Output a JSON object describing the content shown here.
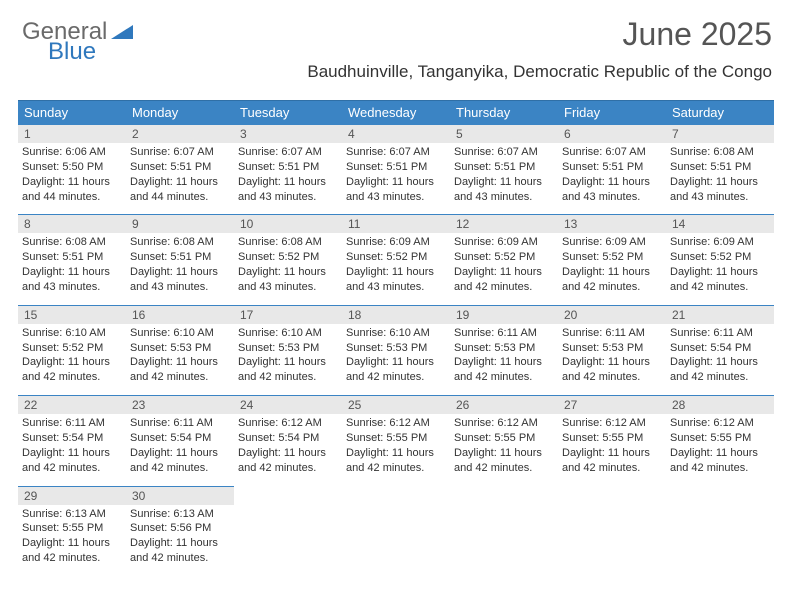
{
  "brand": {
    "general": "General",
    "blue": "Blue"
  },
  "title": "June 2025",
  "location": "Baudhuinville, Tanganyika, Democratic Republic of the Congo",
  "colors": {
    "header_bg": "#3b84c4",
    "header_border": "#2f6fa6",
    "daynum_bg": "#e8e8e8",
    "cell_border": "#3b84c4",
    "text": "#333333",
    "title_text": "#555555",
    "logo_gray": "#6a6a6a",
    "logo_blue": "#2f78bd",
    "page_bg": "#ffffff"
  },
  "typography": {
    "title_fontsize": 32,
    "location_fontsize": 17,
    "dayhead_fontsize": 13,
    "daynum_fontsize": 12,
    "cell_fontsize": 11
  },
  "day_names": [
    "Sunday",
    "Monday",
    "Tuesday",
    "Wednesday",
    "Thursday",
    "Friday",
    "Saturday"
  ],
  "labels": {
    "sunrise": "Sunrise:",
    "sunset": "Sunset:",
    "daylight": "Daylight:"
  },
  "weeks": [
    [
      {
        "n": "1",
        "sr": "6:06 AM",
        "ss": "5:50 PM",
        "dl": "11 hours and 44 minutes."
      },
      {
        "n": "2",
        "sr": "6:07 AM",
        "ss": "5:51 PM",
        "dl": "11 hours and 44 minutes."
      },
      {
        "n": "3",
        "sr": "6:07 AM",
        "ss": "5:51 PM",
        "dl": "11 hours and 43 minutes."
      },
      {
        "n": "4",
        "sr": "6:07 AM",
        "ss": "5:51 PM",
        "dl": "11 hours and 43 minutes."
      },
      {
        "n": "5",
        "sr": "6:07 AM",
        "ss": "5:51 PM",
        "dl": "11 hours and 43 minutes."
      },
      {
        "n": "6",
        "sr": "6:07 AM",
        "ss": "5:51 PM",
        "dl": "11 hours and 43 minutes."
      },
      {
        "n": "7",
        "sr": "6:08 AM",
        "ss": "5:51 PM",
        "dl": "11 hours and 43 minutes."
      }
    ],
    [
      {
        "n": "8",
        "sr": "6:08 AM",
        "ss": "5:51 PM",
        "dl": "11 hours and 43 minutes."
      },
      {
        "n": "9",
        "sr": "6:08 AM",
        "ss": "5:51 PM",
        "dl": "11 hours and 43 minutes."
      },
      {
        "n": "10",
        "sr": "6:08 AM",
        "ss": "5:52 PM",
        "dl": "11 hours and 43 minutes."
      },
      {
        "n": "11",
        "sr": "6:09 AM",
        "ss": "5:52 PM",
        "dl": "11 hours and 43 minutes."
      },
      {
        "n": "12",
        "sr": "6:09 AM",
        "ss": "5:52 PM",
        "dl": "11 hours and 42 minutes."
      },
      {
        "n": "13",
        "sr": "6:09 AM",
        "ss": "5:52 PM",
        "dl": "11 hours and 42 minutes."
      },
      {
        "n": "14",
        "sr": "6:09 AM",
        "ss": "5:52 PM",
        "dl": "11 hours and 42 minutes."
      }
    ],
    [
      {
        "n": "15",
        "sr": "6:10 AM",
        "ss": "5:52 PM",
        "dl": "11 hours and 42 minutes."
      },
      {
        "n": "16",
        "sr": "6:10 AM",
        "ss": "5:53 PM",
        "dl": "11 hours and 42 minutes."
      },
      {
        "n": "17",
        "sr": "6:10 AM",
        "ss": "5:53 PM",
        "dl": "11 hours and 42 minutes."
      },
      {
        "n": "18",
        "sr": "6:10 AM",
        "ss": "5:53 PM",
        "dl": "11 hours and 42 minutes."
      },
      {
        "n": "19",
        "sr": "6:11 AM",
        "ss": "5:53 PM",
        "dl": "11 hours and 42 minutes."
      },
      {
        "n": "20",
        "sr": "6:11 AM",
        "ss": "5:53 PM",
        "dl": "11 hours and 42 minutes."
      },
      {
        "n": "21",
        "sr": "6:11 AM",
        "ss": "5:54 PM",
        "dl": "11 hours and 42 minutes."
      }
    ],
    [
      {
        "n": "22",
        "sr": "6:11 AM",
        "ss": "5:54 PM",
        "dl": "11 hours and 42 minutes."
      },
      {
        "n": "23",
        "sr": "6:11 AM",
        "ss": "5:54 PM",
        "dl": "11 hours and 42 minutes."
      },
      {
        "n": "24",
        "sr": "6:12 AM",
        "ss": "5:54 PM",
        "dl": "11 hours and 42 minutes."
      },
      {
        "n": "25",
        "sr": "6:12 AM",
        "ss": "5:55 PM",
        "dl": "11 hours and 42 minutes."
      },
      {
        "n": "26",
        "sr": "6:12 AM",
        "ss": "5:55 PM",
        "dl": "11 hours and 42 minutes."
      },
      {
        "n": "27",
        "sr": "6:12 AM",
        "ss": "5:55 PM",
        "dl": "11 hours and 42 minutes."
      },
      {
        "n": "28",
        "sr": "6:12 AM",
        "ss": "5:55 PM",
        "dl": "11 hours and 42 minutes."
      }
    ],
    [
      {
        "n": "29",
        "sr": "6:13 AM",
        "ss": "5:55 PM",
        "dl": "11 hours and 42 minutes."
      },
      {
        "n": "30",
        "sr": "6:13 AM",
        "ss": "5:56 PM",
        "dl": "11 hours and 42 minutes."
      },
      null,
      null,
      null,
      null,
      null
    ]
  ]
}
